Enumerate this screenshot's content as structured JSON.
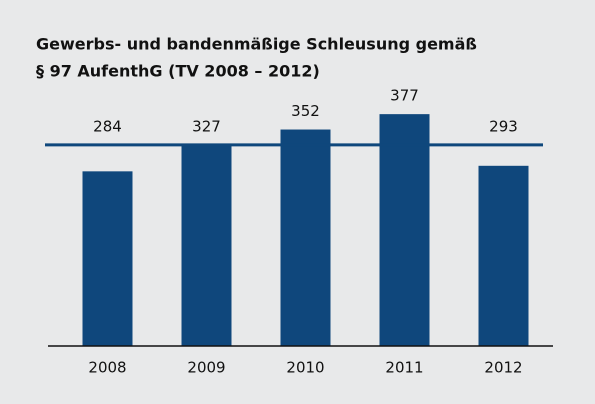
{
  "chart_data": {
    "type": "bar",
    "title": [
      "Gewerbs- und bandenmäßige Schleusung gemäß",
      "§ 97 AufenthG (TV 2008 – 2012)"
    ],
    "categories": [
      "2008",
      "2009",
      "2010",
      "2011",
      "2012"
    ],
    "values": [
      284,
      327,
      352,
      377,
      293
    ],
    "color": "#0f477c",
    "reference_line": 327,
    "ylim": [
      0,
      400
    ]
  }
}
